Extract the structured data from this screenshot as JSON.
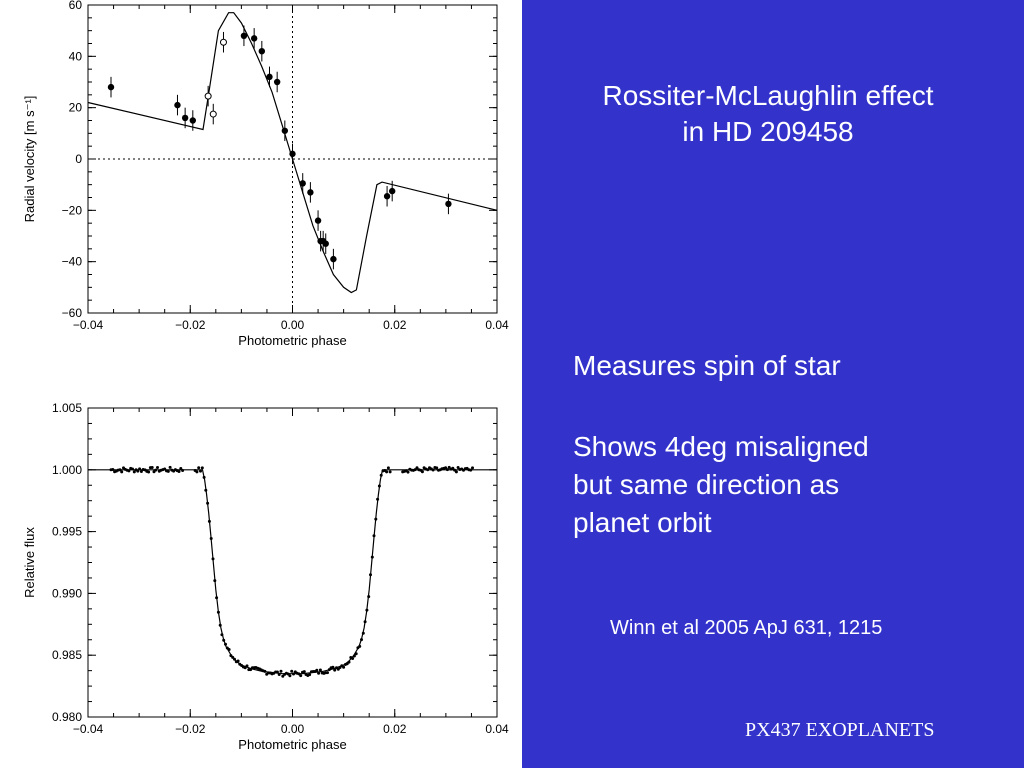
{
  "slide": {
    "title_line1": "Rossiter-McLaughlin effect",
    "title_line2": "in HD 209458",
    "bullet1": "Measures spin of star",
    "bullet2_lines": [
      "Shows 4deg misaligned",
      "but same direction as",
      "planet orbit"
    ],
    "citation": "Winn et al 2005 ApJ 631, 1215",
    "footer": "PX437 EXOPLANETS",
    "background_color": "#3333cc",
    "text_color": "#ffffff"
  },
  "chart_data": [
    {
      "type": "scatter",
      "xlabel": "Photometric phase",
      "ylabel": "Radial velocity [m s⁻¹]",
      "xlim": [
        -0.04,
        0.04
      ],
      "ylim": [
        -60,
        60
      ],
      "xticks": [
        -0.04,
        -0.02,
        0.0,
        0.02,
        0.04
      ],
      "xtick_labels": [
        "−0.04",
        "−0.02",
        "0.00",
        "0.02",
        "0.04"
      ],
      "yticks": [
        -60,
        -40,
        -20,
        0,
        20,
        40,
        60
      ],
      "ytick_labels": [
        "−60",
        "−40",
        "−20",
        "0",
        "20",
        "40",
        "60"
      ],
      "reference_lines": {
        "x": 0.0,
        "y": 0,
        "style": "dotted"
      },
      "model_curve": {
        "x": [
          -0.04,
          -0.0175,
          -0.0165,
          -0.0145,
          -0.0125,
          -0.0115,
          -0.01,
          -0.008,
          -0.006,
          -0.004,
          -0.002,
          0.0,
          0.002,
          0.004,
          0.006,
          0.008,
          0.01,
          0.0115,
          0.0125,
          0.0145,
          0.0165,
          0.0175,
          0.04
        ],
        "y": [
          22,
          11.5,
          24,
          50,
          57,
          57,
          53,
          45,
          36,
          26,
          13,
          0,
          -13,
          -26,
          -36,
          -45,
          -50,
          -52,
          -51,
          -30,
          -10,
          -9,
          -20
        ]
      },
      "series": [
        {
          "marker": "filled-circle",
          "x": [
            -0.0355,
            -0.0225,
            -0.021,
            -0.0195,
            -0.0095,
            -0.0075,
            -0.006,
            -0.0045,
            -0.003,
            -0.0015,
            0.0,
            0.002,
            0.0035,
            0.005,
            0.0055,
            0.006,
            0.0065,
            0.008,
            0.0185,
            0.0195,
            0.0305
          ],
          "y": [
            28,
            21,
            16,
            15,
            48,
            47,
            42,
            32,
            30,
            11,
            2,
            -9.5,
            -13,
            -24,
            -32,
            -32,
            -33,
            -39,
            -14.5,
            -12.5,
            -17.5
          ],
          "err": [
            4,
            4,
            4,
            4,
            4,
            4,
            4,
            4,
            4,
            4,
            4,
            4,
            4,
            4,
            4,
            4,
            4,
            4,
            4,
            4,
            4
          ]
        },
        {
          "marker": "open-circle",
          "x": [
            -0.0165,
            -0.0155,
            -0.0135
          ],
          "y": [
            24.5,
            17.5,
            45.5
          ],
          "err": [
            4,
            4,
            4
          ]
        }
      ]
    },
    {
      "type": "scatter",
      "xlabel": "Photometric phase",
      "ylabel": "Relative flux",
      "xlim": [
        -0.04,
        0.04
      ],
      "ylim": [
        0.98,
        1.005
      ],
      "xticks": [
        -0.04,
        -0.02,
        0.0,
        0.02,
        0.04
      ],
      "xtick_labels": [
        "−0.04",
        "−0.02",
        "0.00",
        "0.02",
        "0.04"
      ],
      "yticks": [
        0.98,
        0.985,
        0.99,
        0.995,
        1.0,
        1.005
      ],
      "ytick_labels": [
        "0.980",
        "0.985",
        "0.990",
        "0.995",
        "1.000",
        "1.005"
      ],
      "model_curve": {
        "x": [
          -0.04,
          -0.0176,
          -0.0172,
          -0.0168,
          -0.0164,
          -0.016,
          -0.0155,
          -0.015,
          -0.0145,
          -0.014,
          -0.0135,
          -0.013,
          -0.012,
          -0.011,
          -0.01,
          -0.008,
          -0.006,
          -0.004,
          -0.002,
          0.0,
          0.002,
          0.004,
          0.006,
          0.008,
          0.01,
          0.011,
          0.012,
          0.013,
          0.0135,
          0.014,
          0.0145,
          0.015,
          0.0155,
          0.016,
          0.0164,
          0.0168,
          0.0172,
          0.0176,
          0.04
        ],
        "y": [
          1.0,
          1.0,
          0.9992,
          0.998,
          0.9965,
          0.9948,
          0.9925,
          0.9903,
          0.9885,
          0.9872,
          0.9863,
          0.9857,
          0.985,
          0.9845,
          0.9842,
          0.9839,
          0.9837,
          0.9836,
          0.9835,
          0.9835,
          0.9835,
          0.9836,
          0.9837,
          0.9839,
          0.9842,
          0.9845,
          0.985,
          0.9857,
          0.9863,
          0.9872,
          0.9885,
          0.9903,
          0.9925,
          0.9948,
          0.9965,
          0.998,
          0.9992,
          1.0,
          1.0
        ]
      },
      "points": {
        "marker": "filled-dot",
        "x_range": [
          -0.0355,
          0.0355
        ],
        "step": 0.00035,
        "scatter": 0.0002
      }
    }
  ]
}
